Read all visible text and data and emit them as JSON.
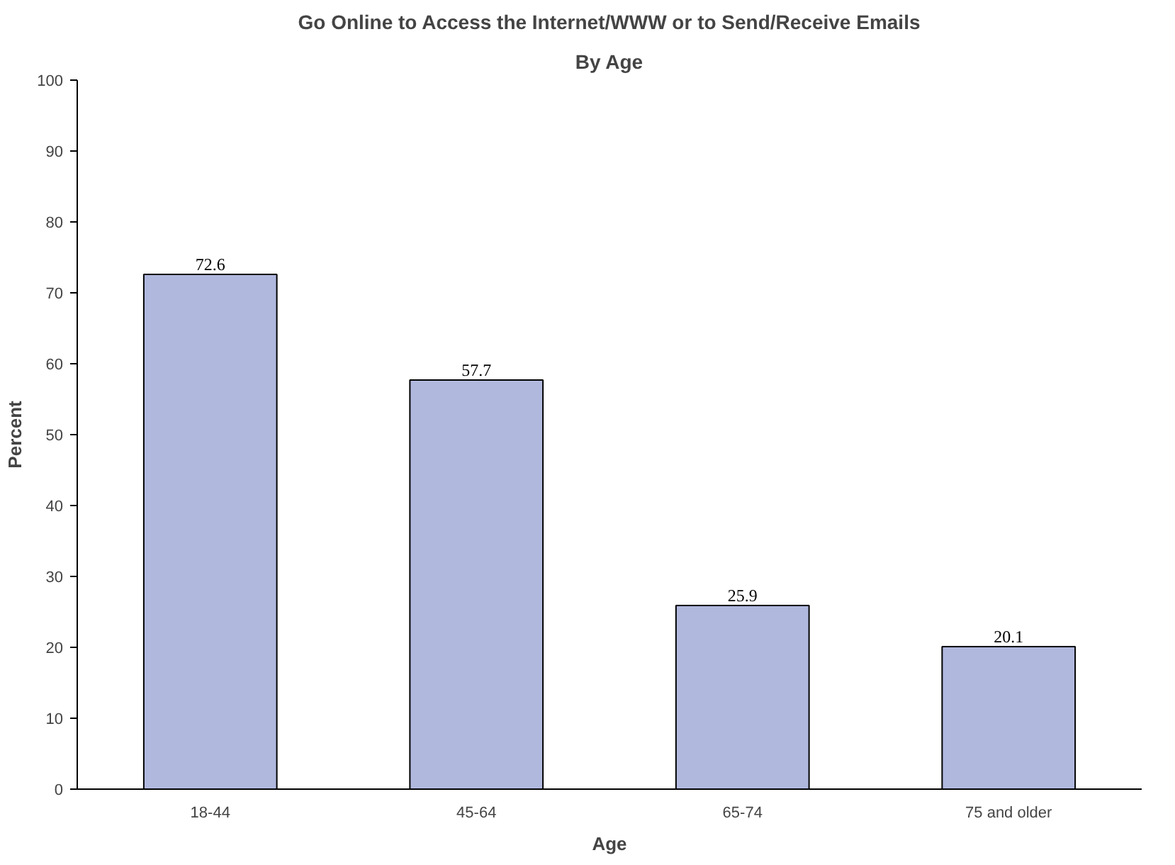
{
  "chart_data": {
    "type": "bar",
    "title": "Go Online to Access the Internet/WWW or to Send/Receive Emails",
    "subtitle": "By Age",
    "xlabel": "Age",
    "ylabel": "Percent",
    "categories": [
      "18-44",
      "45-64",
      "65-74",
      "75 and older"
    ],
    "values": [
      72.6,
      57.7,
      25.9,
      20.1
    ],
    "color": "#b0b8de",
    "ylim": [
      0,
      100
    ],
    "yticks": [
      0,
      10,
      20,
      30,
      40,
      50,
      60,
      70,
      80,
      90,
      100
    ],
    "data_labels": true
  }
}
